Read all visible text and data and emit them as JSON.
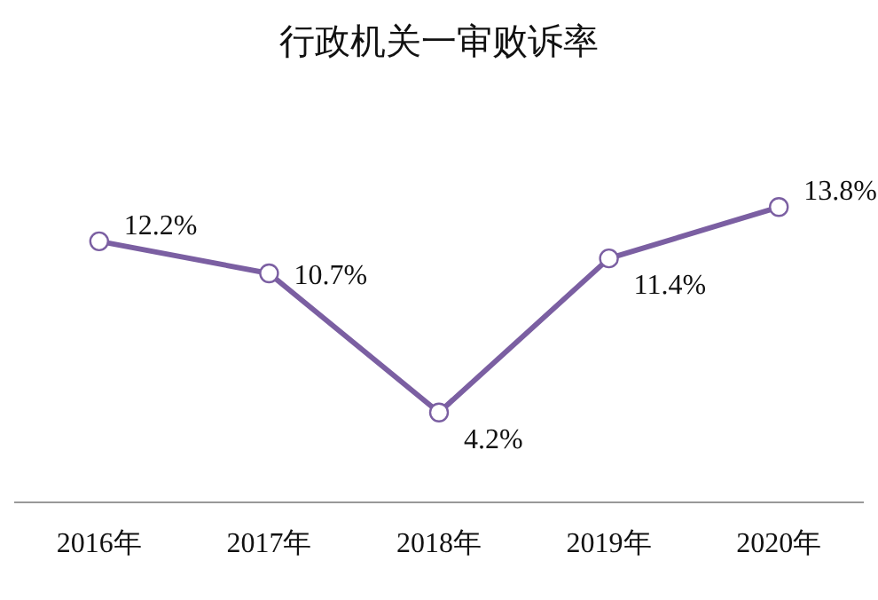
{
  "chart_data": {
    "type": "line",
    "title": "行政机关一审败诉率",
    "categories": [
      "2016年",
      "2017年",
      "2018年",
      "2019年",
      "2020年"
    ],
    "values": [
      12.2,
      10.7,
      4.2,
      11.4,
      13.8
    ],
    "value_labels": [
      "12.2%",
      "10.7%",
      "4.2%",
      "11.4%",
      "13.8%"
    ],
    "color": "#7b5fa2",
    "marker": "circle"
  }
}
